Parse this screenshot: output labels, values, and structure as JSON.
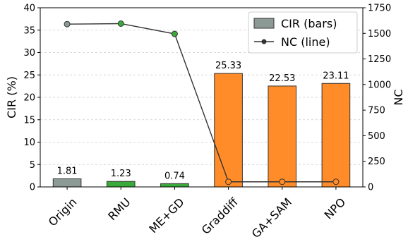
{
  "chart_data": {
    "type": "bar",
    "categories": [
      "Origin",
      "RMU",
      "ME+GD",
      "Graddiff",
      "GA+SAM",
      "NPO"
    ],
    "series": [
      {
        "name": "CIR (bars)",
        "axis": "left",
        "kind": "bar",
        "values": [
          1.81,
          1.23,
          0.74,
          25.33,
          22.53,
          23.11
        ],
        "value_labels": [
          "1.81",
          "1.23",
          "0.74",
          "25.33",
          "22.53",
          "23.11"
        ],
        "colors": [
          "#8c9a96",
          "#3aaa3a",
          "#3aaa3a",
          "#ff8c28",
          "#ff8c28",
          "#ff8c28"
        ]
      },
      {
        "name": "NC (line)",
        "axis": "right",
        "kind": "line",
        "values": [
          1590,
          1595,
          1495,
          50,
          50,
          50
        ],
        "marker_colors": [
          "#8c9a96",
          "#3aaa3a",
          "#3aaa3a",
          "#ff8c28",
          "#ff8c28",
          "#ff8c28"
        ]
      }
    ],
    "ylabel": "CIR (%)",
    "y2label": "NC",
    "ylim": [
      0,
      40
    ],
    "y2lim": [
      0,
      1750
    ],
    "yticks": [
      0,
      5,
      10,
      15,
      20,
      25,
      30,
      35,
      40
    ],
    "y2ticks": [
      0,
      250,
      500,
      750,
      1000,
      1250,
      1500,
      1750
    ],
    "grid": "horizontal-dashed",
    "legend_position": "top-right",
    "legend_entries": [
      {
        "label": "CIR (bars)",
        "swatch_color": "#8c9a96"
      },
      {
        "label": "NC (line)",
        "line_color": "#333333"
      }
    ],
    "line_color": "#333333"
  }
}
